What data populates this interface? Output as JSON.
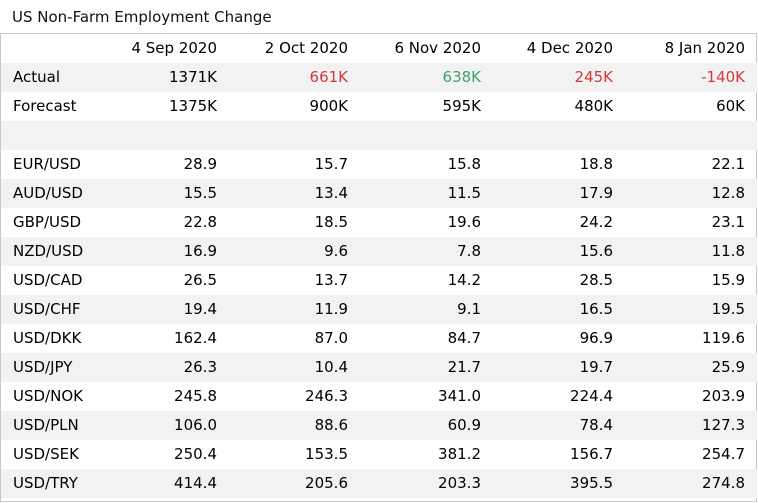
{
  "title": "US Non-Farm Employment Change",
  "chart_data": {
    "type": "table",
    "title": "US Non-Farm Employment Change",
    "columns": [
      "",
      "4 Sep 2020",
      "2 Oct 2020",
      "6 Nov 2020",
      "4 Dec 2020",
      "8 Jan 2020"
    ],
    "rows": [
      {
        "label": "Actual",
        "values": [
          "1371K",
          "661K",
          "638K",
          "245K",
          "-140K"
        ],
        "colors": [
          "#000000",
          "#d03a3a",
          "#3aa56a",
          "#d03a3a",
          "#d03a3a"
        ]
      },
      {
        "label": "Forecast",
        "values": [
          "1375K",
          "900K",
          "595K",
          "480K",
          "60K"
        ]
      },
      {
        "label": "",
        "values": [
          "",
          "",
          "",
          "",
          ""
        ]
      },
      {
        "label": "EUR/USD",
        "values": [
          "28.9",
          "15.7",
          "15.8",
          "18.8",
          "22.1"
        ]
      },
      {
        "label": "AUD/USD",
        "values": [
          "15.5",
          "13.4",
          "11.5",
          "17.9",
          "12.8"
        ]
      },
      {
        "label": "GBP/USD",
        "values": [
          "22.8",
          "18.5",
          "19.6",
          "24.2",
          "23.1"
        ]
      },
      {
        "label": "NZD/USD",
        "values": [
          "16.9",
          "9.6",
          "7.8",
          "15.6",
          "11.8"
        ]
      },
      {
        "label": "USD/CAD",
        "values": [
          "26.5",
          "13.7",
          "14.2",
          "28.5",
          "15.9"
        ]
      },
      {
        "label": "USD/CHF",
        "values": [
          "19.4",
          "11.9",
          "9.1",
          "16.5",
          "19.5"
        ]
      },
      {
        "label": "USD/DKK",
        "values": [
          "162.4",
          "87.0",
          "84.7",
          "96.9",
          "119.6"
        ]
      },
      {
        "label": "USD/JPY",
        "values": [
          "26.3",
          "10.4",
          "21.7",
          "19.7",
          "25.9"
        ]
      },
      {
        "label": "USD/NOK",
        "values": [
          "245.8",
          "246.3",
          "341.0",
          "224.4",
          "203.9"
        ]
      },
      {
        "label": "USD/PLN",
        "values": [
          "106.0",
          "88.6",
          "60.9",
          "78.4",
          "127.3"
        ]
      },
      {
        "label": "USD/SEK",
        "values": [
          "250.4",
          "153.5",
          "381.2",
          "156.7",
          "254.7"
        ]
      },
      {
        "label": "USD/TRY",
        "values": [
          "414.4",
          "205.6",
          "203.3",
          "395.5",
          "274.8"
        ]
      }
    ]
  }
}
